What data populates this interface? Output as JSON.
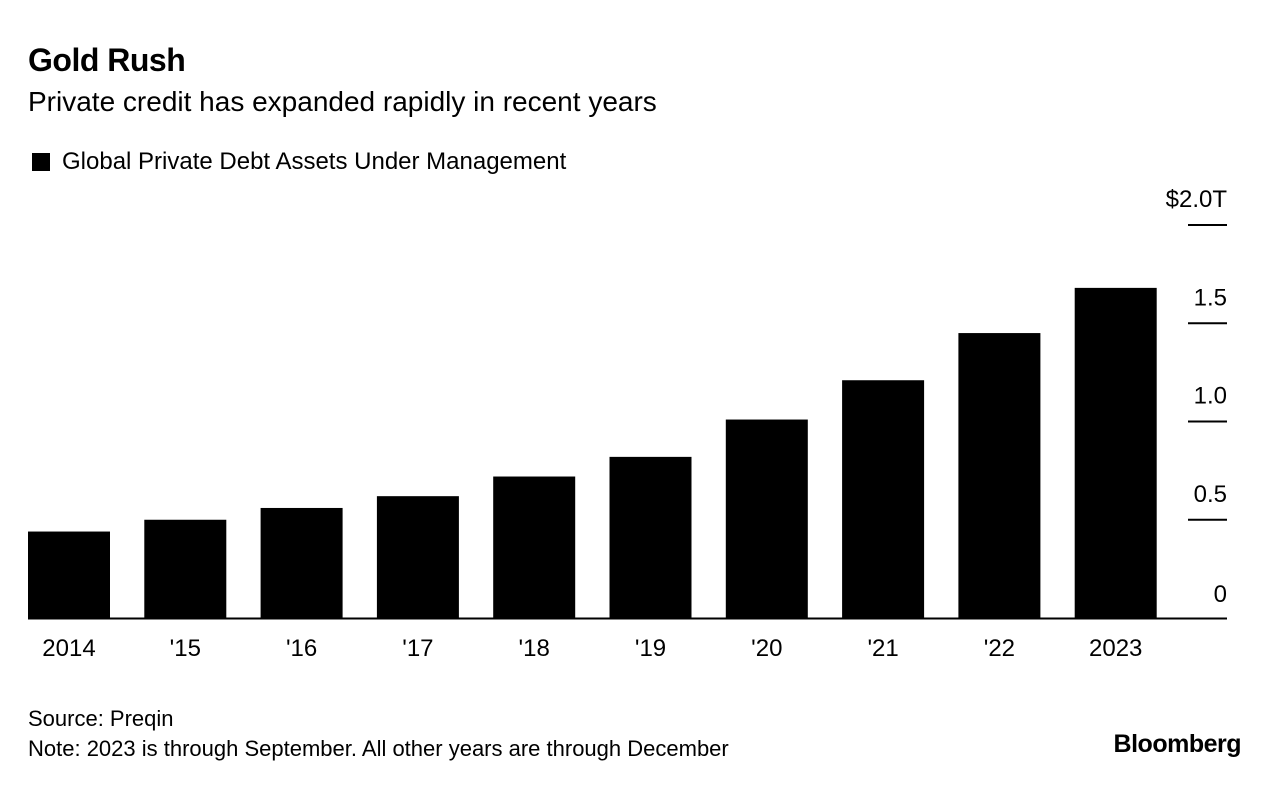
{
  "chart_data": {
    "type": "bar",
    "title": "Gold Rush",
    "subtitle": "Private credit has expanded rapidly in recent years",
    "legend": [
      "Global Private Debt Assets Under Management"
    ],
    "legend_placement": "top-left",
    "categories": [
      "2014",
      "'15",
      "'16",
      "'17",
      "'18",
      "'19",
      "'20",
      "'21",
      "'22",
      "2023"
    ],
    "series": [
      {
        "name": "Global Private Debt Assets Under Management",
        "values": [
          0.44,
          0.5,
          0.56,
          0.62,
          0.72,
          0.82,
          1.01,
          1.21,
          1.45,
          1.68
        ],
        "color": "#000000"
      }
    ],
    "xlabel": "",
    "ylabel": "",
    "ylim": [
      0,
      2.0
    ],
    "yticks": [
      0,
      0.5,
      1.0,
      1.5,
      2.0
    ],
    "ytick_labels": [
      "0",
      "0.5",
      "1.0",
      "1.5",
      "$2.0T"
    ],
    "y_axis_position": "right",
    "grid": false
  },
  "footer": {
    "source": "Source: Preqin",
    "note": "Note: 2023 is through September. All other years are through December",
    "brand": "Bloomberg"
  }
}
